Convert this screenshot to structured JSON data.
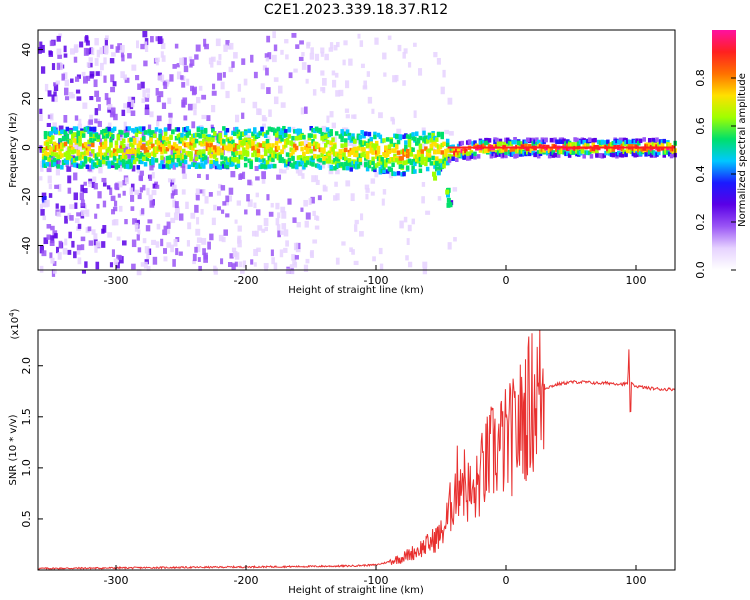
{
  "page": {
    "title": "C2E1.2023.339.18.37.R12"
  },
  "colors": {
    "snr_line": "#e8302f",
    "colormap": [
      "#ffffff",
      "#e6d2ff",
      "#9a55f5",
      "#5a00e6",
      "#1a1aff",
      "#00c8ff",
      "#00e06a",
      "#a0ff00",
      "#ffe000",
      "#ff7000",
      "#ff2020",
      "#ff10a0"
    ]
  },
  "chart_data": [
    {
      "type": "heatmap",
      "title": "C2E1.2023.339.18.37.R12",
      "xlabel": "Height of straight line (km)",
      "ylabel": "Frequency (Hz)",
      "xlim": [
        -360,
        130
      ],
      "ylim": [
        -50,
        48
      ],
      "xticks": [
        -300,
        -200,
        -100,
        0,
        100
      ],
      "yticks": [
        -40,
        -20,
        0,
        20,
        40
      ],
      "colorbar": {
        "label": "Normalized spectral amplitude",
        "range": [
          0,
          1
        ],
        "ticks": [
          0.0,
          0.2,
          0.4,
          0.6,
          0.8
        ]
      },
      "ridge": {
        "description_points": [
          {
            "x": -355,
            "y": 0
          },
          {
            "x": -250,
            "y": 0
          },
          {
            "x": -150,
            "y": 0
          },
          {
            "x": -100,
            "y": -2
          },
          {
            "x": -80,
            "y": -3
          },
          {
            "x": -55,
            "y": -1
          },
          {
            "x": -43,
            "y": -2
          },
          {
            "x": -20,
            "y": 0
          },
          {
            "x": 0,
            "y": 0
          },
          {
            "x": 100,
            "y": 0
          },
          {
            "x": 130,
            "y": 0
          }
        ],
        "branch_points": [
          {
            "x": -55,
            "y": -10
          },
          {
            "x": -45,
            "y": -18
          },
          {
            "x": -44,
            "y": -22
          }
        ]
      }
    },
    {
      "type": "line",
      "xlabel": "Height of straight line (km)",
      "ylabel": "SNR (10 * v/v)",
      "y_multiplier": "(x10",
      "y_multiplier_exp": "4",
      "y_multiplier_close": ")",
      "xlim": [
        -360,
        130
      ],
      "ylim": [
        0,
        23500
      ],
      "xticks": [
        -300,
        -200,
        -100,
        0,
        100
      ],
      "yticks": [
        0.5,
        1.0,
        1.5,
        2.0
      ],
      "ytick_labels": [
        "0.5",
        "1.0",
        "1.5",
        "2.0"
      ],
      "series": [
        {
          "points": [
            [
              -360,
              150
            ],
            [
              -300,
              200
            ],
            [
              -250,
              250
            ],
            [
              -200,
              300
            ],
            [
              -150,
              350
            ],
            [
              -120,
              400
            ],
            [
              -100,
              500
            ],
            [
              -90,
              800
            ],
            [
              -80,
              1200
            ],
            [
              -70,
              1800
            ],
            [
              -60,
              2500
            ],
            [
              -50,
              3500
            ],
            [
              -45,
              5000
            ],
            [
              -40,
              7500
            ],
            [
              -35,
              9500
            ],
            [
              -30,
              8000
            ],
            [
              -25,
              7000
            ],
            [
              -20,
              9000
            ],
            [
              -15,
              10500
            ],
            [
              -10,
              11500
            ],
            [
              -5,
              12000
            ],
            [
              0,
              12500
            ],
            [
              5,
              13000
            ],
            [
              10,
              14000
            ],
            [
              15,
              15500
            ],
            [
              20,
              16500
            ],
            [
              25,
              17300
            ],
            [
              30,
              17800
            ],
            [
              40,
              18200
            ],
            [
              50,
              18400
            ],
            [
              60,
              18400
            ],
            [
              70,
              18300
            ],
            [
              80,
              18300
            ],
            [
              90,
              18200
            ],
            [
              95,
              18300
            ],
            [
              100,
              18000
            ],
            [
              110,
              17800
            ],
            [
              120,
              17700
            ],
            [
              130,
              17700
            ]
          ]
        }
      ]
    }
  ]
}
